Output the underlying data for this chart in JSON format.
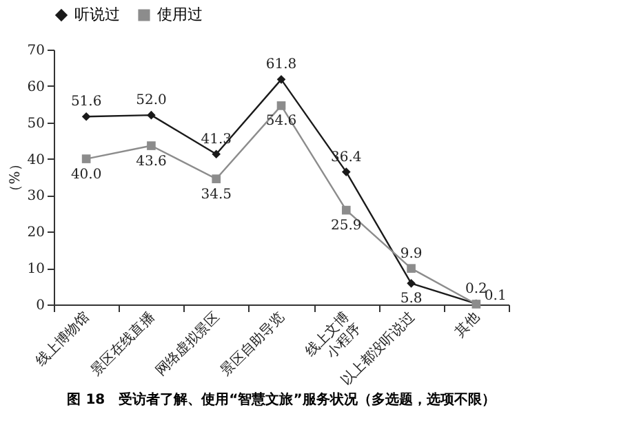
{
  "chart_data": {
    "type": "line",
    "title": "图 18　受访者了解、使用“智慧文旅”服务状况（多选题，选项不限）",
    "ylabel": "（%）",
    "categories": [
      "线上博物馆",
      "景区在线直播",
      "网络虚拟景区",
      "景区自助导览",
      "线上文博\n小程序",
      "以上都没听说过",
      "其他"
    ],
    "series": [
      {
        "name": "听说过",
        "color": "#1a1a1a",
        "marker": "diamond",
        "values": [
          51.6,
          52.0,
          41.3,
          61.8,
          36.4,
          5.8,
          0.2
        ],
        "value_labels": [
          "51.6",
          "52.0",
          "41.3",
          "61.8",
          "36.4",
          "5.8",
          "0.2"
        ]
      },
      {
        "name": "使用过",
        "color": "#8c8c8c",
        "marker": "square",
        "values": [
          40.0,
          43.6,
          34.5,
          54.6,
          25.9,
          9.9,
          0.1
        ],
        "value_labels": [
          "40.0",
          "43.6",
          "34.5",
          "54.6",
          "25.9",
          "9.9",
          "0.1"
        ]
      }
    ],
    "ylim": [
      0,
      70
    ],
    "yticks": [
      0,
      10,
      20,
      30,
      40,
      50,
      60,
      70
    ],
    "grid": false,
    "legend": "top left"
  }
}
